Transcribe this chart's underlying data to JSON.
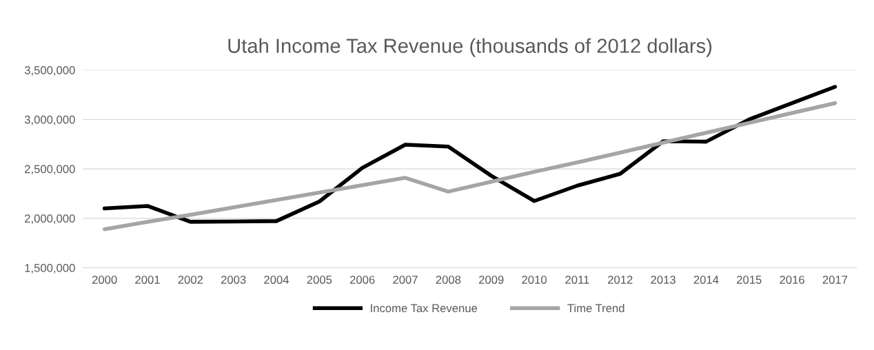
{
  "chart_data": {
    "type": "line",
    "title": "Utah Income Tax Revenue (thousands of 2012 dollars)",
    "categories": [
      "2000",
      "2001",
      "2002",
      "2003",
      "2004",
      "2005",
      "2006",
      "2007",
      "2008",
      "2009",
      "2010",
      "2011",
      "2012",
      "2013",
      "2014",
      "2015",
      "2016",
      "2017"
    ],
    "series": [
      {
        "name": "Income Tax Revenue",
        "color": "#000000",
        "values": [
          2100000,
          2125000,
          1965000,
          1968000,
          1972000,
          2170000,
          2510000,
          2745000,
          2725000,
          2430000,
          2175000,
          2330000,
          2450000,
          2780000,
          2775000,
          3000000,
          3165000,
          3330000
        ]
      },
      {
        "name": "Time Trend",
        "color": "#a5a5a5",
        "values": [
          1890000,
          1965000,
          2035000,
          2110000,
          2185000,
          2260000,
          2335000,
          2410000,
          2270000,
          2370000,
          2470000,
          2565000,
          2665000,
          2765000,
          2865000,
          2965000,
          3065000,
          3165000
        ]
      }
    ],
    "ylim": [
      1500000,
      3500000
    ],
    "yticks": [
      {
        "value": 1500000,
        "label": "1,500,000"
      },
      {
        "value": 2000000,
        "label": "2,000,000"
      },
      {
        "value": 2500000,
        "label": "2,500,000"
      },
      {
        "value": 3000000,
        "label": "3,000,000"
      },
      {
        "value": 3500000,
        "label": "3,500,000"
      }
    ],
    "grid": "y",
    "legend": "bottom",
    "marker": "none",
    "line_style": "solid"
  }
}
